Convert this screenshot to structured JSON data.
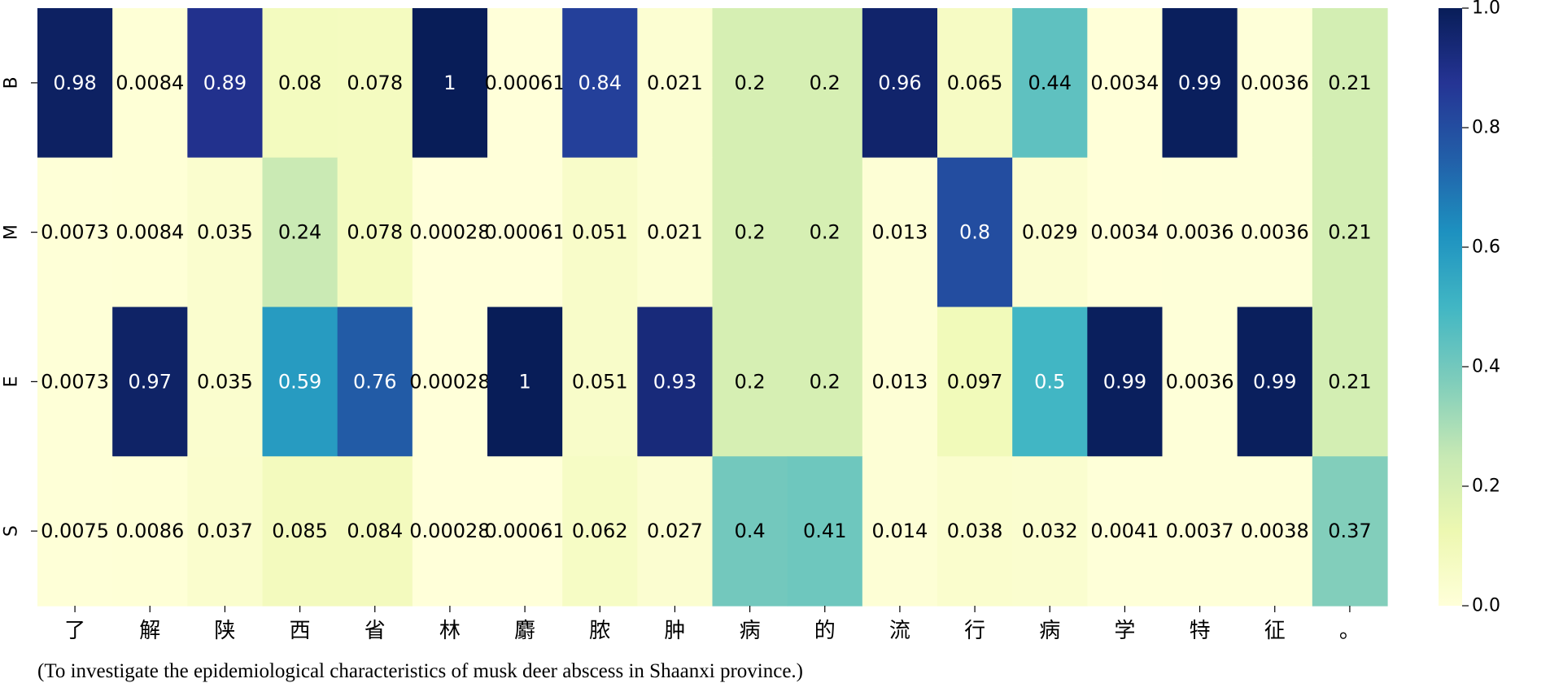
{
  "chart_data": {
    "type": "heatmap",
    "rows": [
      "B",
      "M",
      "E",
      "S"
    ],
    "columns": [
      "了",
      "解",
      "陕",
      "西",
      "省",
      "林",
      "麝",
      "脓",
      "肿",
      "病",
      "的",
      "流",
      "行",
      "病",
      "学",
      "特",
      "征",
      "。"
    ],
    "values": [
      [
        0.98,
        0.0084,
        0.89,
        0.08,
        0.078,
        1,
        0.00061,
        0.84,
        0.021,
        0.2,
        0.2,
        0.96,
        0.065,
        0.44,
        0.0034,
        0.99,
        0.0036,
        0.21
      ],
      [
        0.0073,
        0.0084,
        0.035,
        0.24,
        0.078,
        0.00028,
        0.00061,
        0.051,
        0.021,
        0.2,
        0.2,
        0.013,
        0.8,
        0.029,
        0.0034,
        0.0036,
        0.0036,
        0.21
      ],
      [
        0.0073,
        0.97,
        0.035,
        0.59,
        0.76,
        0.00028,
        1,
        0.051,
        0.93,
        0.2,
        0.2,
        0.013,
        0.097,
        0.5,
        0.99,
        0.0036,
        0.99,
        0.21
      ],
      [
        0.0075,
        0.0086,
        0.037,
        0.085,
        0.084,
        0.00028,
        0.00061,
        0.062,
        0.027,
        0.4,
        0.41,
        0.014,
        0.038,
        0.032,
        0.0041,
        0.0037,
        0.0038,
        0.37
      ]
    ],
    "value_labels": [
      [
        "0.98",
        "0.0084",
        "0.89",
        "0.08",
        "0.078",
        "1",
        "0.00061",
        "0.84",
        "0.021",
        "0.2",
        "0.2",
        "0.96",
        "0.065",
        "0.44",
        "0.0034",
        "0.99",
        "0.0036",
        "0.21"
      ],
      [
        "0.0073",
        "0.0084",
        "0.035",
        "0.24",
        "0.078",
        "0.00028",
        "0.00061",
        "0.051",
        "0.021",
        "0.2",
        "0.2",
        "0.013",
        "0.8",
        "0.029",
        "0.0034",
        "0.0036",
        "0.0036",
        "0.21"
      ],
      [
        "0.0073",
        "0.97",
        "0.035",
        "0.59",
        "0.76",
        "0.00028",
        "1",
        "0.051",
        "0.93",
        "0.2",
        "0.2",
        "0.013",
        "0.097",
        "0.5",
        "0.99",
        "0.0036",
        "0.99",
        "0.21"
      ],
      [
        "0.0075",
        "0.0086",
        "0.037",
        "0.085",
        "0.084",
        "0.00028",
        "0.00061",
        "0.062",
        "0.027",
        "0.4",
        "0.41",
        "0.014",
        "0.038",
        "0.032",
        "0.0041",
        "0.0037",
        "0.0038",
        "0.37"
      ]
    ],
    "colormap": "YlGnBu",
    "colormap_stops": [
      "#ffffd9",
      "#edf8b1",
      "#c7e9b4",
      "#7fcdbb",
      "#41b6c4",
      "#1d91c0",
      "#225ea8",
      "#253494",
      "#081d58"
    ],
    "vmin": 0,
    "vmax": 1,
    "colorbar_ticks": [
      0.0,
      0.2,
      0.4,
      0.6,
      0.8,
      1.0
    ],
    "colorbar_tick_labels": [
      "0.0",
      "0.2",
      "0.4",
      "0.6",
      "0.8",
      "1.0"
    ],
    "annotation_light_color": "#ffffff",
    "annotation_dark_color": "#000000",
    "caption": "(To investigate the epidemiological characteristics of musk deer abscess in Shaanxi province.)"
  }
}
